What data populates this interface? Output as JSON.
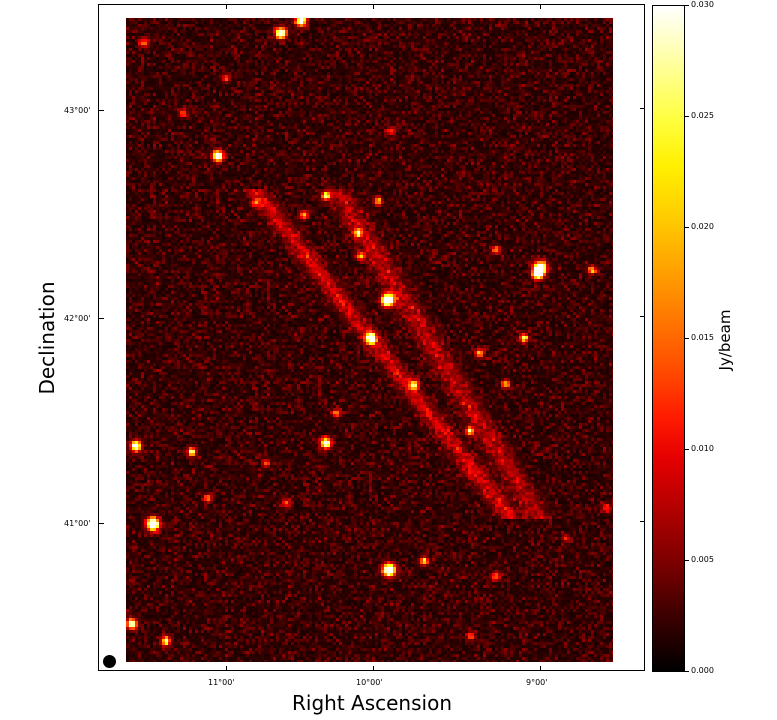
{
  "figure": {
    "x_axis_label": "Right Ascension",
    "y_axis_label": "Declination",
    "x_tick_labels": [
      "11°00'",
      "10°00'",
      "9°00'"
    ],
    "y_tick_labels": [
      "43°00'",
      "42°00'",
      "41°00'"
    ],
    "colormap": "hot",
    "beam_marker": "filled-circle"
  },
  "colorbar": {
    "label": "Jy/beam",
    "min": 0.0,
    "max": 0.03,
    "tick_labels": [
      "0.030",
      "0.025",
      "0.020",
      "0.015",
      "0.010",
      "0.005",
      "0.000"
    ]
  }
}
